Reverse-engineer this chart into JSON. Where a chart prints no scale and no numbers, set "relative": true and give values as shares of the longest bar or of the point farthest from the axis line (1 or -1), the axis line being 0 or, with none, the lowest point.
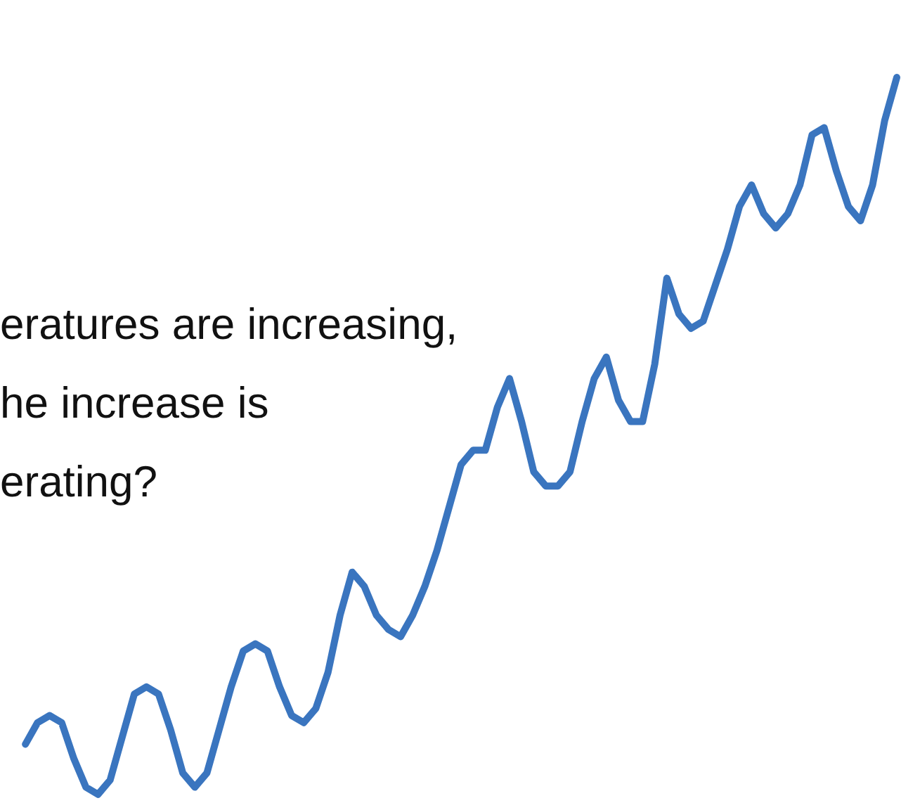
{
  "chart_data": {
    "type": "line",
    "relative": true,
    "categories": [
      null,
      null,
      null,
      null,
      null,
      null,
      null,
      null,
      null,
      null,
      null,
      null,
      null,
      null,
      null,
      null,
      null,
      null,
      null,
      null,
      null,
      null,
      null,
      null,
      null,
      null,
      null,
      null,
      null,
      null,
      null,
      null,
      null,
      null,
      null,
      null,
      null,
      null,
      null,
      null,
      null,
      null,
      null,
      null,
      null,
      null,
      null,
      null,
      null,
      null,
      null,
      null,
      null,
      null,
      null,
      null,
      null,
      null,
      null,
      null,
      null,
      null,
      null,
      null,
      null,
      null,
      null,
      null,
      null,
      null,
      null,
      null,
      null
    ],
    "series": [
      {
        "color": "#3a75bf",
        "values": [
          0.07,
          0.1,
          0.11,
          0.1,
          0.05,
          0.01,
          0.0,
          0.02,
          0.08,
          0.14,
          0.15,
          0.14,
          0.09,
          0.03,
          0.01,
          0.03,
          0.09,
          0.15,
          0.2,
          0.21,
          0.2,
          0.15,
          0.11,
          0.1,
          0.12,
          0.17,
          0.25,
          0.31,
          0.29,
          0.25,
          0.23,
          0.22,
          0.25,
          0.29,
          0.34,
          0.4,
          0.46,
          0.48,
          0.48,
          0.54,
          0.58,
          0.52,
          0.45,
          0.43,
          0.43,
          0.45,
          0.52,
          0.58,
          0.61,
          0.55,
          0.52,
          0.52,
          0.6,
          0.72,
          0.67,
          0.65,
          0.66,
          0.71,
          0.76,
          0.82,
          0.85,
          0.81,
          0.79,
          0.81,
          0.85,
          0.92,
          0.93,
          0.87,
          0.82,
          0.8,
          0.85,
          0.94,
          1.0
        ]
      }
    ],
    "annotations": [
      "eratures are increasing,",
      "he increase is",
      "erating?"
    ],
    "legend": false,
    "marker": "none",
    "line_style": "solid"
  }
}
